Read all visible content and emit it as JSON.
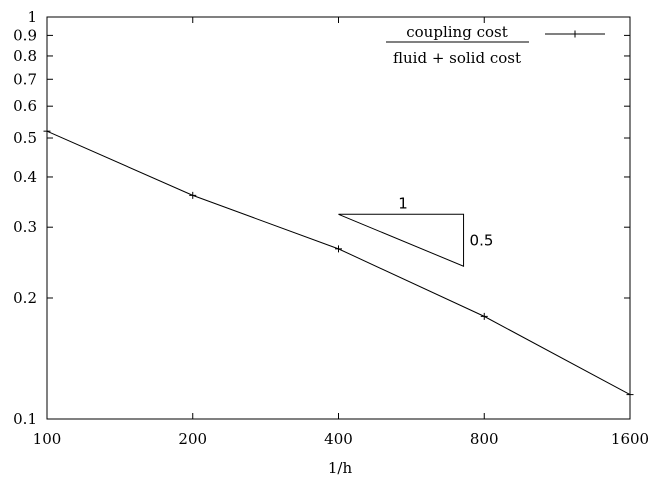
{
  "chart_data": {
    "type": "line",
    "xscale": "log",
    "yscale": "log",
    "xlabel": "1/h",
    "ylabel": "",
    "xlim": [
      100,
      1600
    ],
    "ylim": [
      0.1,
      1
    ],
    "x_ticks": [
      {
        "value": 100,
        "label": "100"
      },
      {
        "value": 200,
        "label": "200"
      },
      {
        "value": 400,
        "label": "400"
      },
      {
        "value": 800,
        "label": "800"
      },
      {
        "value": 1600,
        "label": "1600"
      }
    ],
    "y_ticks": [
      {
        "value": 0.1,
        "label": "0.1"
      },
      {
        "value": 0.2,
        "label": "0.2"
      },
      {
        "value": 0.3,
        "label": "0.3"
      },
      {
        "value": 0.4,
        "label": "0.4"
      },
      {
        "value": 0.5,
        "label": "0.5"
      },
      {
        "value": 0.6,
        "label": "0.6"
      },
      {
        "value": 0.7,
        "label": "0.7"
      },
      {
        "value": 0.8,
        "label": "0.8"
      },
      {
        "value": 0.9,
        "label": "0.9"
      },
      {
        "value": 1,
        "label": "1"
      }
    ],
    "grid": false,
    "legend": {
      "position": "top-right"
    },
    "series": [
      {
        "name": "coupling cost / fluid + solid cost",
        "legend_numerator": "coupling cost",
        "legend_denominator": "fluid + solid cost",
        "marker": "plus",
        "color": "#000000",
        "x": [
          100,
          200,
          400,
          800,
          1600
        ],
        "y": [
          0.52,
          0.36,
          0.265,
          0.18,
          0.115
        ]
      }
    ],
    "slope_triangle": {
      "x_start": 400,
      "x_end": 725,
      "y_top": 0.323,
      "run_label": "1",
      "rise_label": "0.5"
    }
  }
}
